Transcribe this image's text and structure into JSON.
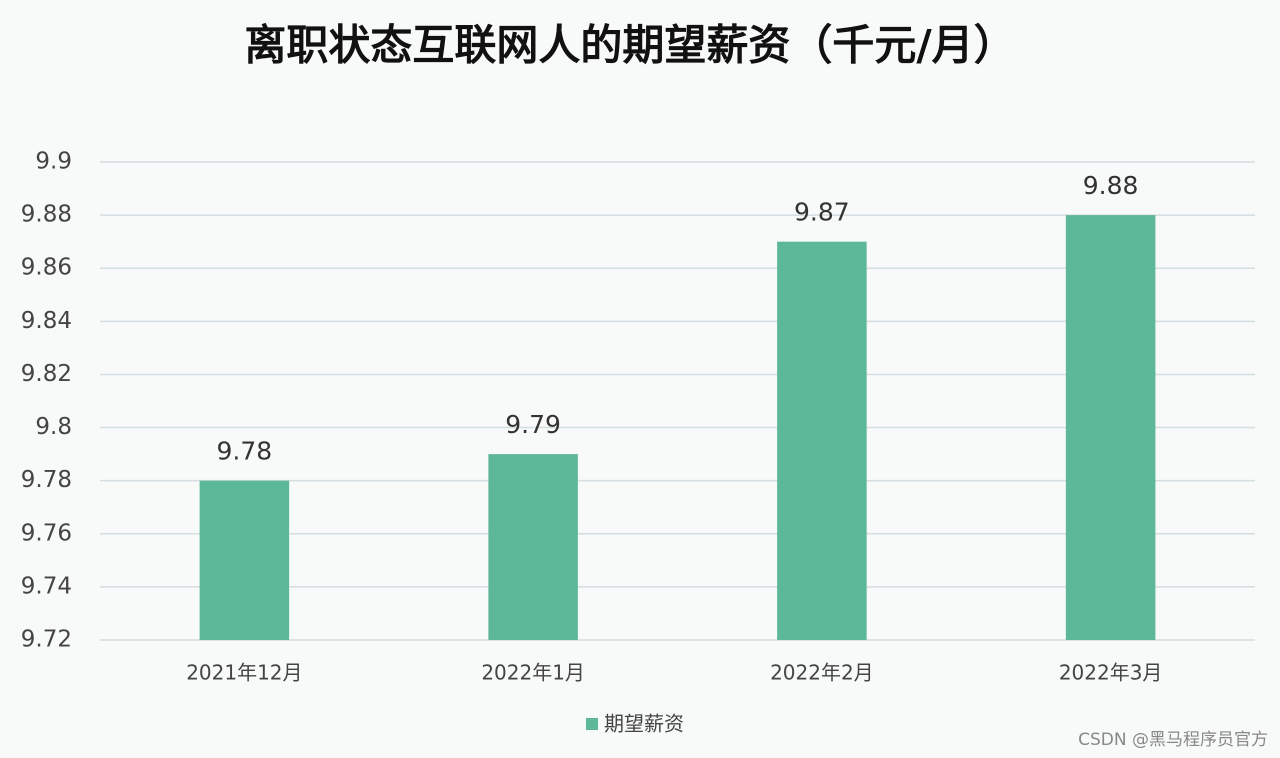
{
  "chart_data": {
    "type": "bar",
    "title": "离职状态互联网人的期望薪资（千元/月）",
    "categories": [
      "2021年12月",
      "2022年1月",
      "2022年2月",
      "2022年3月"
    ],
    "series": [
      {
        "name": "期望薪资",
        "color": "#5db89a",
        "values": [
          9.78,
          9.79,
          9.87,
          9.88
        ]
      }
    ],
    "ylim": [
      9.72,
      9.9
    ],
    "yticks": [
      9.72,
      9.74,
      9.76,
      9.78,
      9.8,
      9.82,
      9.84,
      9.86,
      9.88,
      9.9
    ],
    "grid": true,
    "legend": "bottom",
    "watermark": "CSDN @黑马程序员官方"
  }
}
